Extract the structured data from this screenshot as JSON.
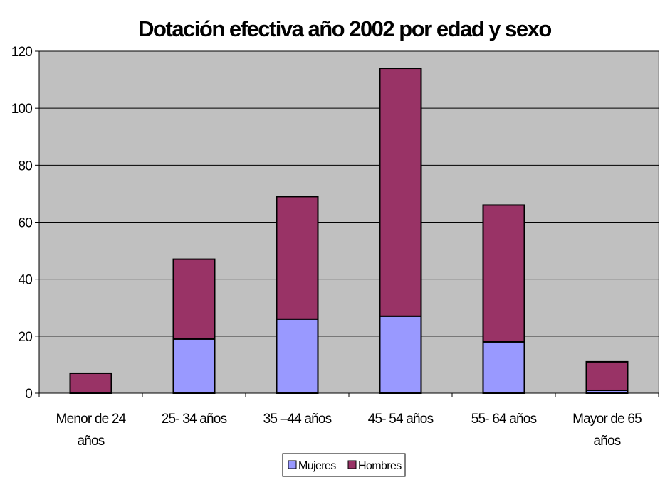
{
  "chart_data": {
    "type": "bar",
    "stacked": true,
    "title": "Dotación efectiva año 2002 por edad y sexo",
    "xlabel": "",
    "ylabel": "",
    "categories": [
      [
        "Menor de 24",
        "años"
      ],
      [
        "25- 34 años"
      ],
      [
        "35 –44 años"
      ],
      [
        "45- 54 años"
      ],
      [
        "55- 64 años"
      ],
      [
        "Mayor de 65",
        "años"
      ]
    ],
    "series": [
      {
        "name": "Mujeres",
        "color": "#9999ff",
        "values": [
          0,
          19,
          26,
          27,
          18,
          1
        ]
      },
      {
        "name": "Hombres",
        "color": "#993366",
        "values": [
          7,
          28,
          43,
          87,
          48,
          10
        ]
      }
    ],
    "ylim": [
      0,
      120
    ],
    "yticks": [
      0,
      20,
      40,
      60,
      80,
      100,
      120
    ],
    "grid": true,
    "plot_background": "#c0c0c0",
    "legend_position": "bottom"
  }
}
